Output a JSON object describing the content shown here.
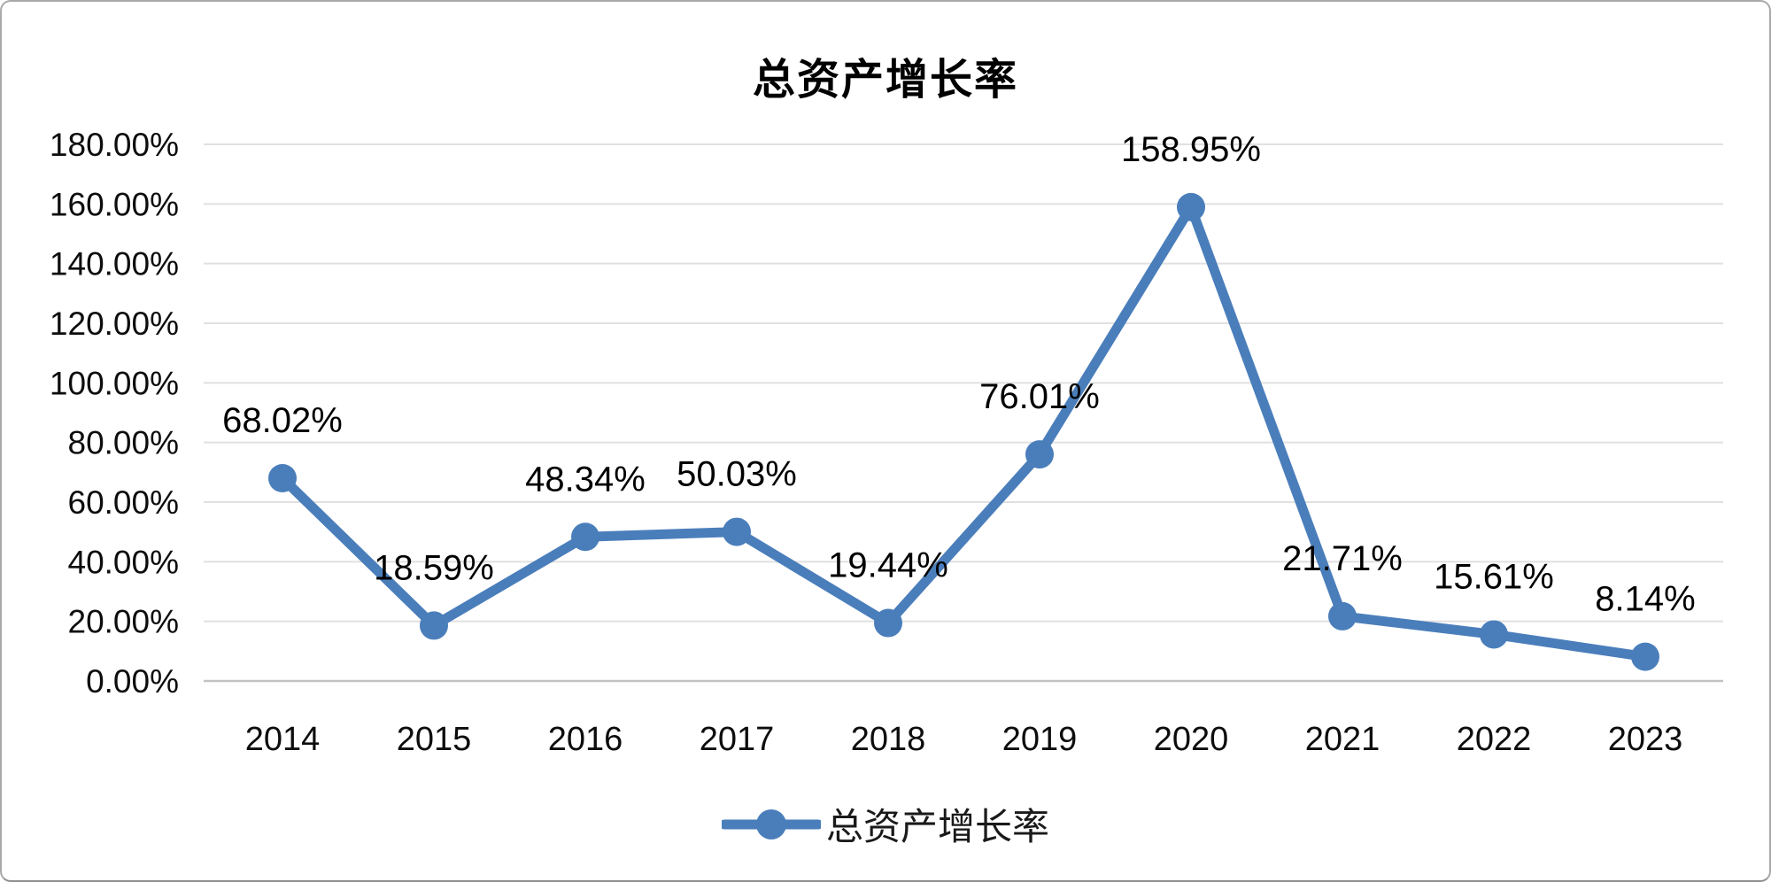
{
  "chart_data": {
    "type": "line",
    "title": "总资产增长率",
    "categories": [
      "2014",
      "2015",
      "2016",
      "2017",
      "2018",
      "2019",
      "2020",
      "2021",
      "2022",
      "2023"
    ],
    "series": [
      {
        "name": "总资产增长率",
        "values": [
          68.02,
          18.59,
          48.34,
          50.03,
          19.44,
          76.01,
          158.95,
          21.71,
          15.61,
          8.14
        ],
        "color": "#4a7ebb"
      }
    ],
    "data_labels": [
      "68.02%",
      "18.59%",
      "48.34%",
      "50.03%",
      "19.44%",
      "76.01%",
      "158.95%",
      "21.71%",
      "15.61%",
      "8.14%"
    ],
    "ylim": [
      0,
      180
    ],
    "ytick_step": 20,
    "ytick_labels": [
      "0.00%",
      "20.00%",
      "40.00%",
      "60.00%",
      "80.00%",
      "100.00%",
      "120.00%",
      "140.00%",
      "160.00%",
      "180.00%"
    ],
    "grid": true,
    "legend_position": "bottom",
    "legend_label": "总资产增长率",
    "colors": {
      "line": "#4a7ebb",
      "gridline": "#e0e0e0",
      "axis_line": "#c3c3c3",
      "text": "#0d0d0d",
      "card_border": "#a9a9a9",
      "background": "#ffffff"
    }
  }
}
